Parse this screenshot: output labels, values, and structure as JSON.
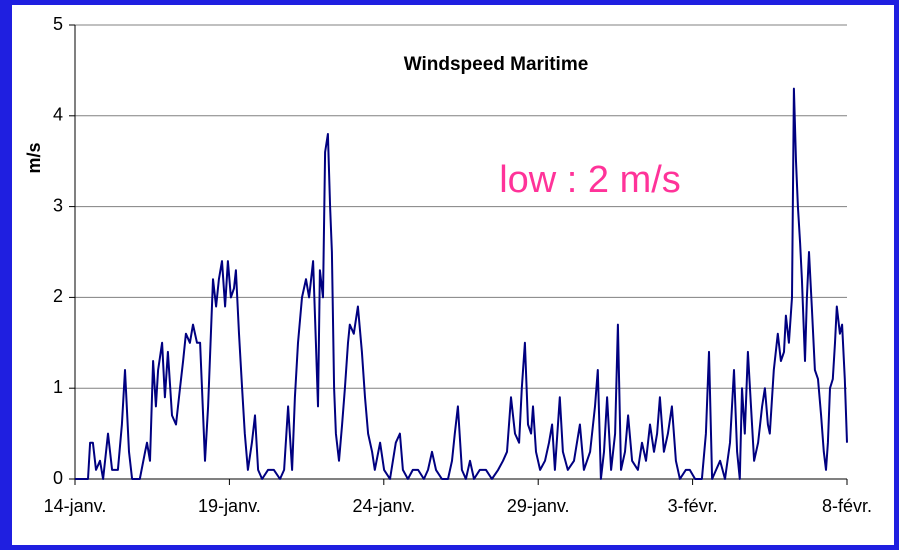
{
  "chart_data": {
    "type": "line",
    "title": "Windspeed  Maritime",
    "y_label": "m/s",
    "annotation": "low : 2 m/s",
    "xlim": [
      0,
      25
    ],
    "xticks": [
      {
        "value": 0,
        "label": "14-janv."
      },
      {
        "value": 5,
        "label": "19-janv."
      },
      {
        "value": 10,
        "label": "24-janv."
      },
      {
        "value": 15,
        "label": "29-janv."
      },
      {
        "value": 20,
        "label": "3-févr."
      },
      {
        "value": 25,
        "label": "8-févr."
      }
    ],
    "ylim": [
      0,
      5
    ],
    "yticks": [
      0,
      1,
      2,
      3,
      4,
      5
    ],
    "grid": true,
    "x": [
      0,
      0.42,
      0.49,
      0.58,
      0.68,
      0.81,
      0.91,
      1.07,
      1.2,
      1.39,
      1.52,
      1.62,
      1.75,
      1.85,
      2.1,
      2.27,
      2.33,
      2.43,
      2.53,
      2.62,
      2.69,
      2.82,
      2.91,
      3.01,
      3.14,
      3.27,
      3.4,
      3.5,
      3.59,
      3.72,
      3.82,
      3.95,
      4.05,
      4.21,
      4.31,
      4.47,
      4.57,
      4.66,
      4.76,
      4.86,
      4.95,
      5.05,
      5.15,
      5.21,
      5.31,
      5.41,
      5.5,
      5.6,
      5.73,
      5.83,
      5.93,
      6.06,
      6.25,
      6.44,
      6.64,
      6.77,
      6.9,
      7.03,
      7.12,
      7.22,
      7.35,
      7.48,
      7.58,
      7.71,
      7.8,
      7.87,
      7.93,
      8.03,
      8.1,
      8.19,
      8.26,
      8.32,
      8.39,
      8.45,
      8.55,
      8.65,
      8.74,
      8.84,
      8.9,
      9.03,
      9.16,
      9.29,
      9.39,
      9.49,
      9.62,
      9.71,
      9.88,
      10.01,
      10.2,
      10.39,
      10.52,
      10.62,
      10.78,
      10.94,
      11.11,
      11.3,
      11.43,
      11.56,
      11.69,
      11.88,
      12.08,
      12.21,
      12.3,
      12.4,
      12.53,
      12.66,
      12.79,
      12.92,
      13.11,
      13.31,
      13.5,
      13.7,
      13.86,
      13.99,
      14.12,
      14.25,
      14.38,
      14.47,
      14.57,
      14.67,
      14.77,
      14.83,
      14.93,
      15.06,
      15.22,
      15.35,
      15.45,
      15.54,
      15.7,
      15.8,
      15.96,
      16.16,
      16.35,
      16.48,
      16.68,
      16.84,
      16.93,
      17.03,
      17.13,
      17.23,
      17.36,
      17.49,
      17.58,
      17.68,
      17.81,
      17.91,
      18.04,
      18.23,
      18.36,
      18.49,
      18.62,
      18.75,
      18.85,
      18.94,
      19.07,
      19.2,
      19.33,
      19.46,
      19.59,
      19.78,
      19.91,
      20.08,
      20.3,
      20.43,
      20.53,
      20.63,
      20.76,
      20.89,
      21.05,
      21.21,
      21.34,
      21.44,
      21.53,
      21.6,
      21.69,
      21.79,
      21.89,
      21.99,
      22.12,
      22.25,
      22.34,
      22.44,
      22.5,
      22.63,
      22.76,
      22.86,
      22.96,
      23.02,
      23.12,
      23.22,
      23.28,
      23.35,
      23.41,
      23.48,
      23.54,
      23.64,
      23.7,
      23.77,
      23.86,
      23.96,
      24.06,
      24.16,
      24.25,
      24.32,
      24.38,
      24.45,
      24.54,
      24.61,
      24.67,
      24.77,
      24.84,
      24.93,
      25
    ],
    "series": [
      {
        "name": "Windspeed",
        "color": "#000080",
        "values": [
          0,
          0,
          0.4,
          0.4,
          0.1,
          0.2,
          0,
          0.5,
          0.1,
          0.1,
          0.6,
          1.2,
          0.3,
          0,
          0,
          0.3,
          0.4,
          0.2,
          1.3,
          0.8,
          1.2,
          1.5,
          0.9,
          1.4,
          0.7,
          0.6,
          1.0,
          1.3,
          1.6,
          1.5,
          1.7,
          1.5,
          1.5,
          0.2,
          0.8,
          2.2,
          1.9,
          2.2,
          2.4,
          1.9,
          2.4,
          2.0,
          2.1,
          2.3,
          1.6,
          1.0,
          0.5,
          0.1,
          0.4,
          0.7,
          0.1,
          0,
          0.1,
          0.1,
          0,
          0.1,
          0.8,
          0.1,
          0.9,
          1.5,
          2.0,
          2.2,
          2.0,
          2.4,
          1.5,
          0.8,
          2.3,
          2.0,
          3.6,
          3.8,
          3.0,
          2.5,
          1.0,
          0.5,
          0.2,
          0.6,
          1.0,
          1.5,
          1.7,
          1.6,
          1.9,
          1.4,
          0.9,
          0.5,
          0.3,
          0.1,
          0.4,
          0.1,
          0,
          0.4,
          0.5,
          0.1,
          0,
          0.1,
          0.1,
          0,
          0.1,
          0.3,
          0.1,
          0,
          0,
          0.2,
          0.5,
          0.8,
          0.1,
          0,
          0.2,
          0,
          0.1,
          0.1,
          0,
          0.1,
          0.2,
          0.3,
          0.9,
          0.5,
          0.4,
          1.0,
          1.5,
          0.6,
          0.5,
          0.8,
          0.3,
          0.1,
          0.2,
          0.4,
          0.6,
          0.1,
          0.9,
          0.3,
          0.1,
          0.2,
          0.6,
          0.1,
          0.3,
          0.8,
          1.2,
          0,
          0.3,
          0.9,
          0.1,
          0.5,
          1.7,
          0.1,
          0.3,
          0.7,
          0.2,
          0.1,
          0.4,
          0.2,
          0.6,
          0.3,
          0.5,
          0.9,
          0.3,
          0.5,
          0.8,
          0.2,
          0,
          0.1,
          0.1,
          0,
          0,
          0.5,
          1.4,
          0,
          0.1,
          0.2,
          0,
          0.4,
          1.2,
          0.3,
          0,
          1.0,
          0.5,
          1.4,
          0.8,
          0.2,
          0.4,
          0.8,
          1.0,
          0.6,
          0.5,
          1.2,
          1.6,
          1.3,
          1.4,
          1.8,
          1.5,
          2.0,
          4.3,
          3.5,
          3.0,
          2.6,
          2.2,
          1.3,
          2.0,
          2.5,
          1.9,
          1.2,
          1.1,
          0.7,
          0.3,
          0.1,
          0.4,
          1.0,
          1.1,
          1.5,
          1.9,
          1.6,
          1.7,
          1.1,
          0.4
        ]
      }
    ]
  }
}
